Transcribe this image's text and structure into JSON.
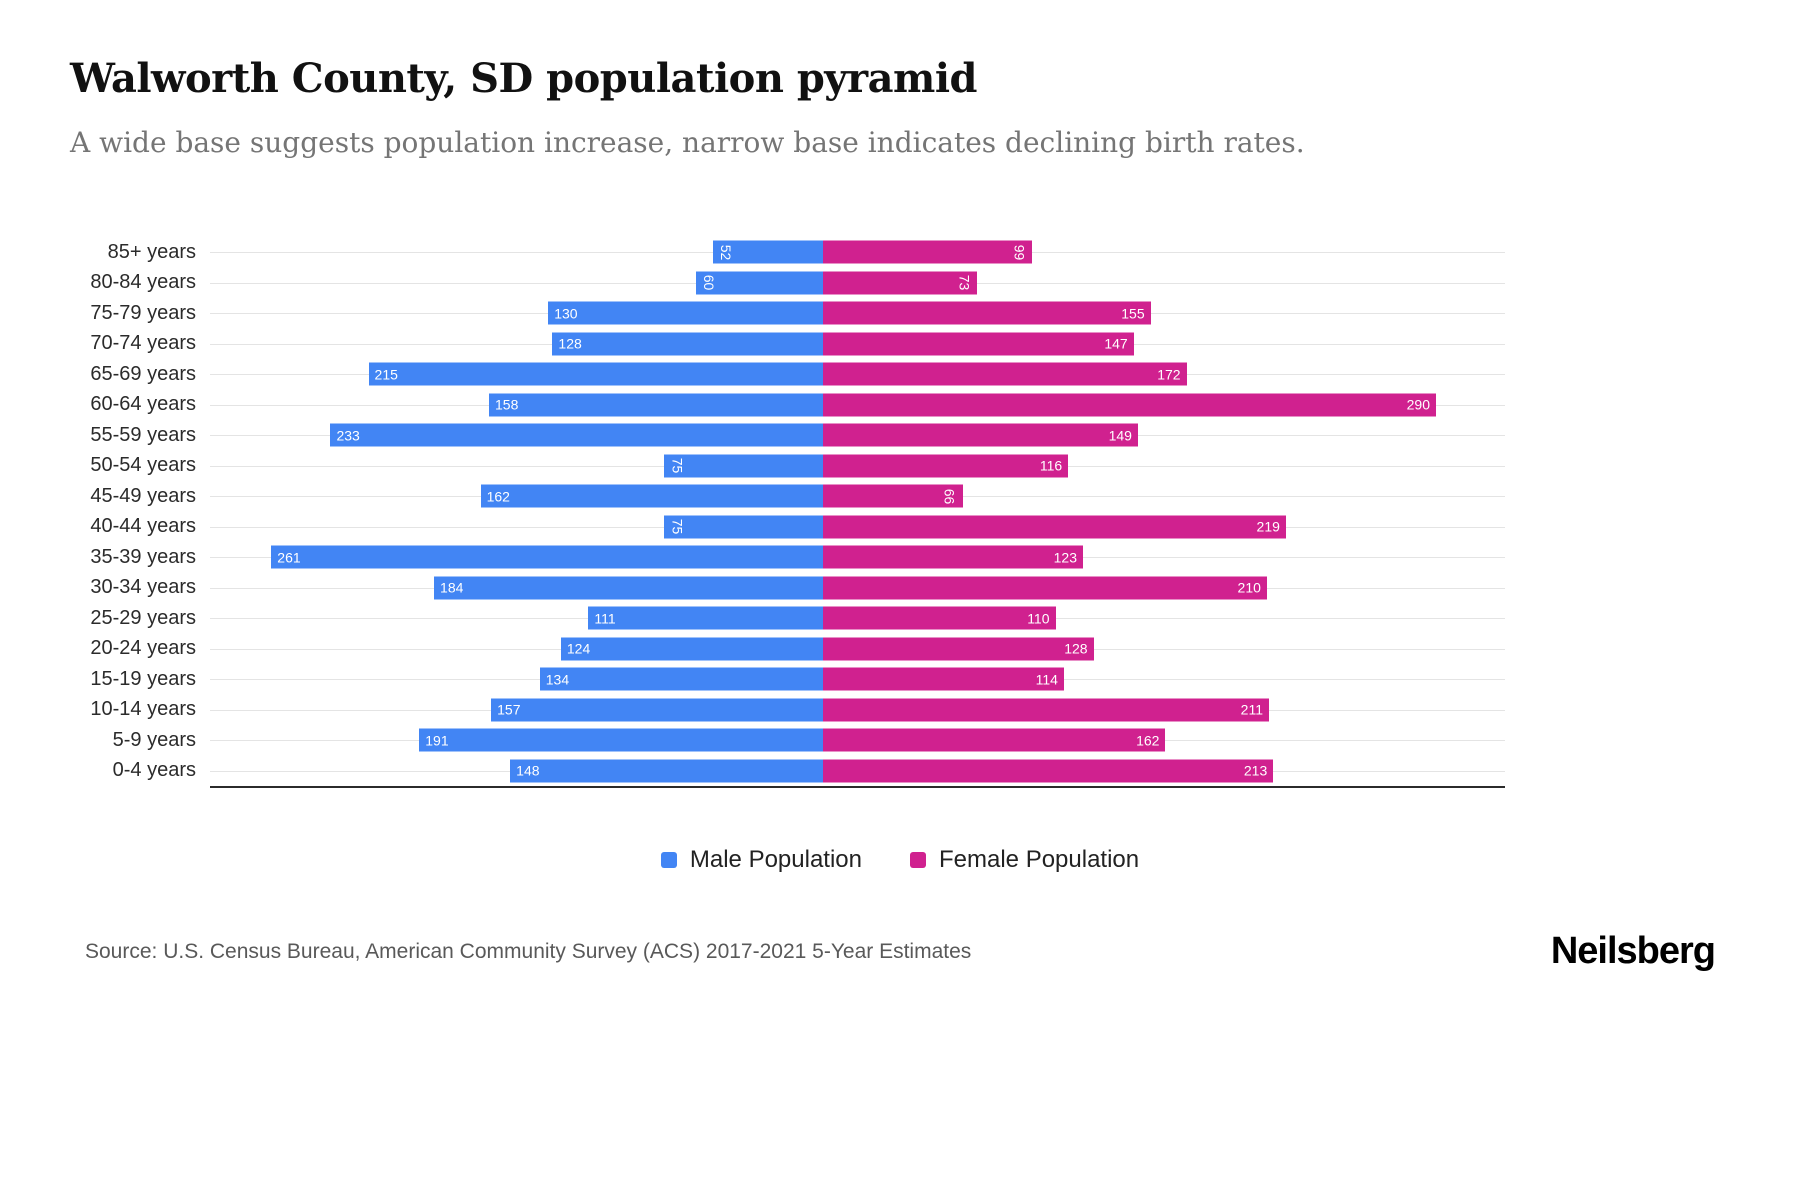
{
  "header": {
    "title": "Walworth County, SD population pyramid",
    "subtitle": "A wide base suggests population increase, narrow base indicates declining birth rates."
  },
  "chart_data": {
    "type": "bar",
    "variant": "population-pyramid",
    "title": "Walworth County, SD population pyramid",
    "categories": [
      "85+ years",
      "80-84 years",
      "75-79 years",
      "70-74 years",
      "65-69 years",
      "60-64 years",
      "55-59 years",
      "50-54 years",
      "45-49 years",
      "40-44 years",
      "35-39 years",
      "30-34 years",
      "25-29 years",
      "20-24 years",
      "15-19 years",
      "10-14 years",
      "5-9 years",
      "0-4 years"
    ],
    "series": [
      {
        "name": "Male Population",
        "color": "#4285F4",
        "direction": "left",
        "values": [
          52,
          60,
          130,
          128,
          215,
          158,
          233,
          75,
          162,
          75,
          261,
          184,
          111,
          124,
          134,
          157,
          191,
          148
        ]
      },
      {
        "name": "Female Population",
        "color": "#D0218F",
        "direction": "right",
        "values": [
          99,
          73,
          155,
          147,
          172,
          290,
          149,
          116,
          66,
          219,
          123,
          210,
          110,
          128,
          114,
          211,
          162,
          213
        ]
      }
    ],
    "xmax": 290,
    "value_label_rotate_below": 100,
    "grid": "horizontal-per-category",
    "legend_position": "bottom"
  },
  "footer": {
    "source": "Source: U.S. Census Bureau, American Community Survey (ACS) 2017-2021 5-Year Estimates",
    "brand": "Neilsberg"
  }
}
